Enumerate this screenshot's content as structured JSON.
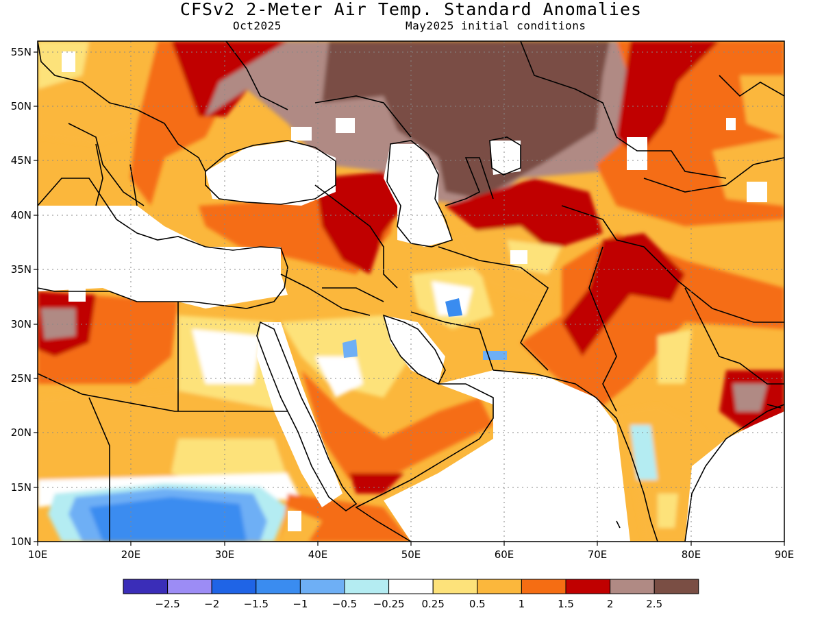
{
  "header": {
    "title": "CFSv2 2-Meter Air Temp. Standard Anomalies",
    "valid_month": "Oct2025",
    "init_conditions": "May2025 initial conditions"
  },
  "map": {
    "lon_labels": [
      "10E",
      "20E",
      "30E",
      "40E",
      "50E",
      "60E",
      "70E",
      "80E",
      "90E"
    ],
    "lat_labels": [
      "55N",
      "50N",
      "45N",
      "40N",
      "35N",
      "30N",
      "25N",
      "20N",
      "15N",
      "10N"
    ]
  },
  "legend": {
    "colors": [
      "#3a2db8",
      "#9c8cf5",
      "#1f64e6",
      "#3a8cf0",
      "#6eaff5",
      "#b4ecf2",
      "#ffffff",
      "#fde27a",
      "#fbb73c",
      "#f56d13",
      "#c00000",
      "#b08a84",
      "#7a4e44"
    ],
    "labels": [
      "−2.5",
      "−2",
      "−1.5",
      "−1",
      "−0.5",
      "−0.25",
      "0.25",
      "0.5",
      "1",
      "1.5",
      "2",
      "2.5"
    ]
  }
}
